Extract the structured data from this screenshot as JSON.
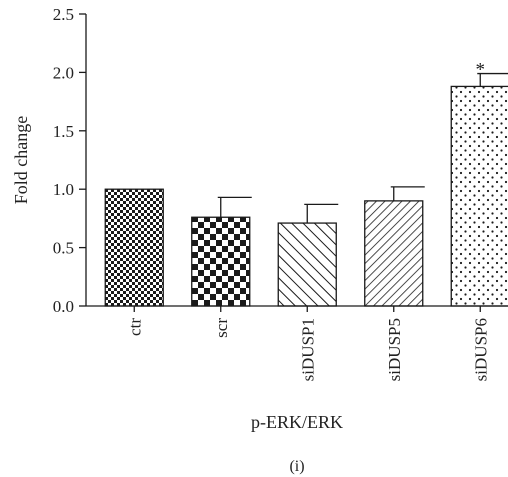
{
  "chart_data": {
    "type": "bar",
    "title": "",
    "xlabel": "p-ERK/ERK",
    "ylabel": "Fold change",
    "panel_label": "(i)",
    "categories": [
      "ctr",
      "scr",
      "siDUSP1",
      "siDUSP5",
      "siDUSP6"
    ],
    "values": [
      1.0,
      0.76,
      0.71,
      0.9,
      1.88
    ],
    "errors": [
      0.0,
      0.17,
      0.16,
      0.12,
      0.11
    ],
    "annotations": [
      "",
      "",
      "",
      "",
      "*"
    ],
    "patterns": [
      "small-checker",
      "large-checker",
      "diagonal-lines",
      "dense-diagonal-lines",
      "dots"
    ],
    "ylim": [
      0.0,
      2.5
    ],
    "yticks": [
      0.0,
      0.5,
      1.0,
      1.5,
      2.0,
      2.5
    ],
    "ytick_labels": [
      "0.0",
      "0.5",
      "1.0",
      "1.5",
      "2.0",
      "2.5"
    ],
    "grid": false,
    "colors": {
      "ink": "#1a1a1a",
      "background": "#ffffff"
    }
  }
}
